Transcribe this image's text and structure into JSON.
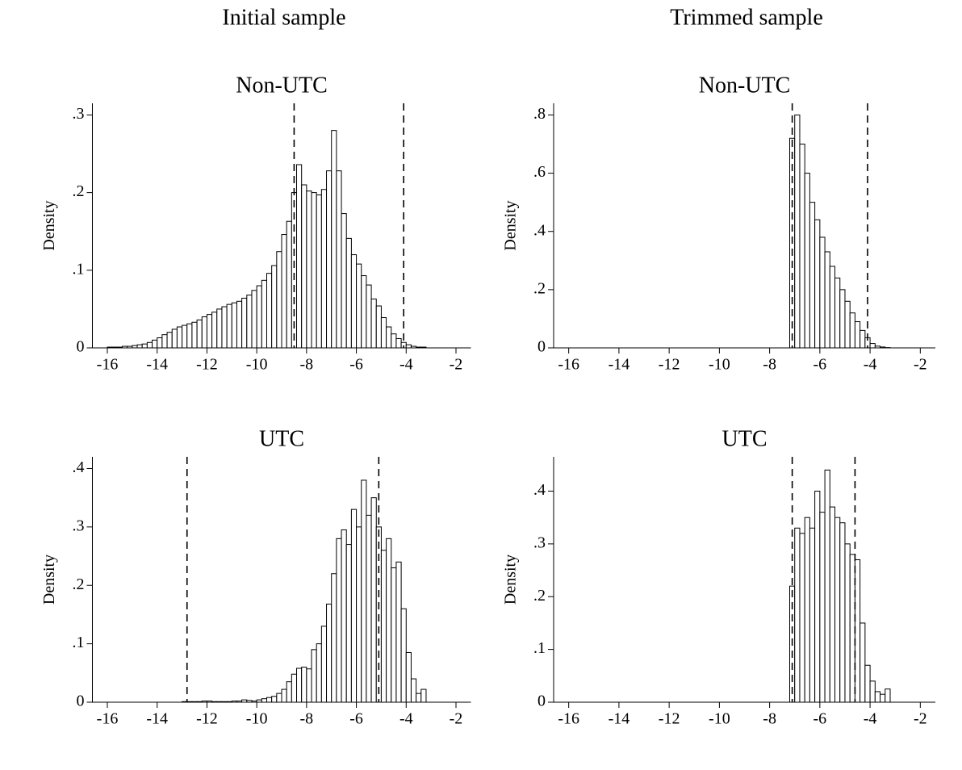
{
  "headings": [
    "Initial sample",
    "Trimmed sample"
  ],
  "chart_data": [
    {
      "type": "histogram",
      "title": "Non-UTC",
      "ylabel": "Density",
      "bins": [
        -16,
        -15.8,
        -15.6,
        -15.4,
        -15.2,
        -15,
        -14.8,
        -14.6,
        -14.4,
        -14.2,
        -14,
        -13.8,
        -13.6,
        -13.4,
        -13.2,
        -13,
        -12.8,
        -12.6,
        -12.4,
        -12.2,
        -12,
        -11.8,
        -11.6,
        -11.4,
        -11.2,
        -11,
        -10.8,
        -10.6,
        -10.4,
        -10.2,
        -10,
        -9.8,
        -9.6,
        -9.4,
        -9.2,
        -9,
        -8.8,
        -8.6,
        -8.4,
        -8.2,
        -8,
        -7.8,
        -7.6,
        -7.4,
        -7.2,
        -7,
        -6.8,
        -6.6,
        -6.4,
        -6.2,
        -6,
        -5.8,
        -5.6,
        -5.4,
        -5.2,
        -5,
        -4.8,
        -4.6,
        -4.4,
        -4.2,
        -4,
        -3.8,
        -3.6,
        -3.4,
        -3.2
      ],
      "values": [
        0.001,
        0.001,
        0.001,
        0.002,
        0.002,
        0.003,
        0.004,
        0.005,
        0.007,
        0.01,
        0.013,
        0.017,
        0.02,
        0.024,
        0.027,
        0.029,
        0.031,
        0.033,
        0.036,
        0.04,
        0.043,
        0.046,
        0.05,
        0.053,
        0.056,
        0.058,
        0.06,
        0.064,
        0.068,
        0.074,
        0.08,
        0.087,
        0.096,
        0.106,
        0.124,
        0.146,
        0.163,
        0.2,
        0.236,
        0.21,
        0.202,
        0.2,
        0.197,
        0.204,
        0.228,
        0.28,
        0.228,
        0.173,
        0.141,
        0.12,
        0.108,
        0.093,
        0.081,
        0.063,
        0.054,
        0.039,
        0.027,
        0.018,
        0.012,
        0.007,
        0.004,
        0.002,
        0.001,
        0.001
      ],
      "vlines": [
        -8.5,
        -4.1
      ],
      "xlim": [
        -16.6,
        -1.4
      ],
      "xticks": [
        -16,
        -14,
        -12,
        -10,
        -8,
        -6,
        -4,
        -2
      ],
      "ylim": [
        0,
        0.315
      ],
      "yticks": [
        0,
        {
          "value": 0.1,
          "label": ".1"
        },
        {
          "value": 0.2,
          "label": ".2"
        },
        {
          "value": 0.3,
          "label": ".3"
        }
      ],
      "color": "#ffffff"
    },
    {
      "type": "histogram",
      "title": "Non-UTC",
      "ylabel": "Density",
      "bins": [
        -7.2,
        -7,
        -6.8,
        -6.6,
        -6.4,
        -6.2,
        -6,
        -5.8,
        -5.6,
        -5.4,
        -5.2,
        -5,
        -4.8,
        -4.6,
        -4.4,
        -4.2,
        -4,
        -3.8,
        -3.6,
        -3.4,
        -3.2
      ],
      "values": [
        0.72,
        0.8,
        0.7,
        0.6,
        0.5,
        0.44,
        0.38,
        0.33,
        0.28,
        0.24,
        0.2,
        0.16,
        0.12,
        0.09,
        0.06,
        0.035,
        0.015,
        0.006,
        0.003,
        0.001
      ],
      "vlines": [
        -7.1,
        -4.1
      ],
      "xlim": [
        -16.6,
        -1.4
      ],
      "xticks": [
        -16,
        -14,
        -12,
        -10,
        -8,
        -6,
        -4,
        -2
      ],
      "ylim": [
        0,
        0.84
      ],
      "yticks": [
        0,
        {
          "value": 0.2,
          "label": ".2"
        },
        {
          "value": 0.4,
          "label": ".4"
        },
        {
          "value": 0.6,
          "label": ".6"
        },
        {
          "value": 0.8,
          "label": ".8"
        }
      ],
      "color": "#ffffff"
    },
    {
      "type": "histogram",
      "title": "UTC",
      "ylabel": "Density",
      "bins": [
        -13,
        -12.8,
        -12.6,
        -12.4,
        -12.2,
        -12,
        -11.8,
        -11.6,
        -11.4,
        -11.2,
        -11,
        -10.8,
        -10.6,
        -10.4,
        -10.2,
        -10,
        -9.8,
        -9.6,
        -9.4,
        -9.2,
        -9,
        -8.8,
        -8.6,
        -8.4,
        -8.2,
        -8,
        -7.8,
        -7.6,
        -7.4,
        -7.2,
        -7,
        -6.8,
        -6.6,
        -6.4,
        -6.2,
        -6,
        -5.8,
        -5.6,
        -5.4,
        -5.2,
        -5,
        -4.8,
        -4.6,
        -4.4,
        -4.2,
        -4,
        -3.8,
        -3.6,
        -3.4,
        -3.2
      ],
      "values": [
        0.001,
        0.001,
        0.001,
        0.001,
        0.002,
        0.002,
        0.001,
        0.001,
        0.001,
        0.001,
        0.002,
        0.002,
        0.004,
        0.003,
        0.002,
        0.004,
        0.006,
        0.008,
        0.01,
        0.015,
        0.022,
        0.035,
        0.048,
        0.058,
        0.06,
        0.057,
        0.09,
        0.1,
        0.13,
        0.168,
        0.22,
        0.28,
        0.295,
        0.27,
        0.33,
        0.3,
        0.38,
        0.32,
        0.35,
        0.3,
        0.26,
        0.28,
        0.23,
        0.24,
        0.16,
        0.085,
        0.04,
        0.015,
        0.022
      ],
      "vlines": [
        -12.8,
        -5.1
      ],
      "xlim": [
        -16.6,
        -1.4
      ],
      "xticks": [
        -16,
        -14,
        -12,
        -10,
        -8,
        -6,
        -4,
        -2
      ],
      "ylim": [
        0,
        0.42
      ],
      "yticks": [
        0,
        {
          "value": 0.1,
          "label": ".1"
        },
        {
          "value": 0.2,
          "label": ".2"
        },
        {
          "value": 0.3,
          "label": ".3"
        },
        {
          "value": 0.4,
          "label": ".4"
        }
      ],
      "color": "#ffffff"
    },
    {
      "type": "histogram",
      "title": "UTC",
      "ylabel": "Density",
      "bins": [
        -7.2,
        -7,
        -6.8,
        -6.6,
        -6.4,
        -6.2,
        -6,
        -5.8,
        -5.6,
        -5.4,
        -5.2,
        -5,
        -4.8,
        -4.6,
        -4.4,
        -4.2,
        -4,
        -3.8,
        -3.6,
        -3.4,
        -3.2
      ],
      "values": [
        0.22,
        0.33,
        0.32,
        0.35,
        0.33,
        0.4,
        0.36,
        0.44,
        0.37,
        0.35,
        0.34,
        0.3,
        0.28,
        0.27,
        0.15,
        0.07,
        0.04,
        0.02,
        0.015,
        0.025
      ],
      "vlines": [
        -7.1,
        -4.6
      ],
      "xlim": [
        -16.6,
        -1.4
      ],
      "xticks": [
        -16,
        -14,
        -12,
        -10,
        -8,
        -6,
        -4,
        -2
      ],
      "ylim": [
        0,
        0.465
      ],
      "yticks": [
        0,
        {
          "value": 0.1,
          "label": ".1"
        },
        {
          "value": 0.2,
          "label": ".2"
        },
        {
          "value": 0.3,
          "label": ".3"
        },
        {
          "value": 0.4,
          "label": ".4"
        }
      ],
      "color": "#ffffff"
    }
  ]
}
